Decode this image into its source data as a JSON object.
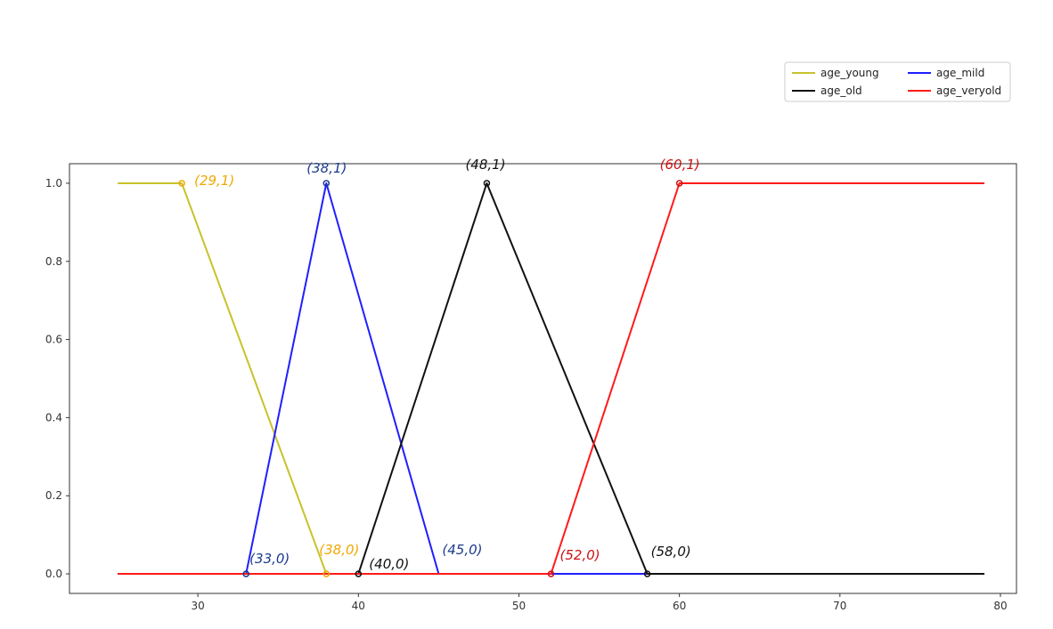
{
  "chart_data": {
    "type": "line",
    "title": "",
    "xlabel": "",
    "ylabel": "",
    "xlim": [
      22,
      81
    ],
    "ylim": [
      -0.05,
      1.05
    ],
    "x_ticks": [
      30,
      40,
      50,
      60,
      70,
      80
    ],
    "y_ticks": [
      0.0,
      0.2,
      0.4,
      0.6,
      0.8,
      1.0
    ],
    "x_tick_labels": [
      "30",
      "40",
      "50",
      "60",
      "70",
      "80"
    ],
    "y_tick_labels": [
      "0.0",
      "0.2",
      "0.4",
      "0.6",
      "0.8",
      "1.0"
    ],
    "grid": false,
    "legend": {
      "placement": "top-right",
      "columns": 2
    },
    "series": [
      {
        "name": "age_young",
        "color": "#c8c22a",
        "points": [
          [
            25,
            1
          ],
          [
            29,
            1
          ],
          [
            38,
            0
          ],
          [
            79,
            0
          ]
        ]
      },
      {
        "name": "age_mild",
        "color": "#1f1fff",
        "points": [
          [
            25,
            0
          ],
          [
            33,
            0
          ],
          [
            38,
            1
          ],
          [
            45,
            0
          ],
          [
            79,
            0
          ]
        ]
      },
      {
        "name": "age_old",
        "color": "#111111",
        "points": [
          [
            25,
            0
          ],
          [
            40,
            0
          ],
          [
            48,
            1
          ],
          [
            58,
            0
          ],
          [
            79,
            0
          ]
        ]
      },
      {
        "name": "age_veryold",
        "color": "#ff1a1a",
        "points": [
          [
            25,
            0
          ],
          [
            52,
            0
          ],
          [
            60,
            1
          ],
          [
            79,
            1
          ]
        ]
      }
    ],
    "annotations": [
      {
        "text": "(29,1)",
        "x": 29,
        "y": 1,
        "color": "#f0a800",
        "marker": true
      },
      {
        "text": "(38,1)",
        "x": 38,
        "y": 1,
        "color": "#1a3a8c",
        "marker": true
      },
      {
        "text": "(48,1)",
        "x": 48,
        "y": 1,
        "color": "#111111",
        "marker": true
      },
      {
        "text": "(60,1)",
        "x": 60,
        "y": 1,
        "color": "#cc1111",
        "marker": true
      },
      {
        "text": "(33,0)",
        "x": 33,
        "y": 0,
        "color": "#1a3a8c",
        "marker": true
      },
      {
        "text": "(38,0)",
        "x": 38,
        "y": 0,
        "color": "#f0a800",
        "marker": true
      },
      {
        "text": "(40,0)",
        "x": 40,
        "y": 0,
        "color": "#111111",
        "marker": true
      },
      {
        "text": "(45,0)",
        "x": 45,
        "y": 0,
        "color": "#1a3a8c",
        "marker": false
      },
      {
        "text": "(52,0)",
        "x": 52,
        "y": 0,
        "color": "#cc1111",
        "marker": true
      },
      {
        "text": "(58,0)",
        "x": 58,
        "y": 0,
        "color": "#111111",
        "marker": true
      }
    ]
  }
}
